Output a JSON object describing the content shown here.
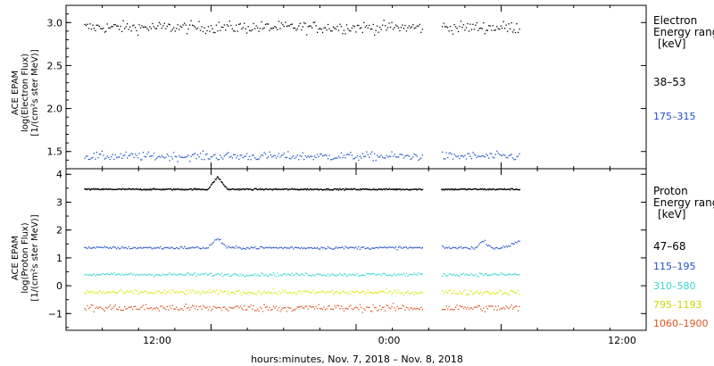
{
  "xlabel": "hours:minutes, Nov.  7, 2018 – Nov.  8, 2018",
  "x_ticks": [
    "12:00",
    "0:00",
    "12:00"
  ],
  "chart_data": [
    {
      "type": "scatter",
      "ylabel_lines": [
        "ACE EPAM",
        "log(Electron Flux)",
        "[1/(cm²s ster MeV)]"
      ],
      "legend_title_lines": [
        "Electron",
        "Energy ranges",
        "[keV]"
      ],
      "ylim": [
        1.3,
        3.2
      ],
      "y_ticks": [
        "1.5",
        "2.0",
        "2.5",
        "3.0"
      ],
      "x_hours_range": [
        0,
        48
      ],
      "data_gap_hours": [
        29.5,
        31
      ],
      "series": [
        {
          "name": "38–53",
          "color": "#000000",
          "level": 2.95,
          "noise": 0.07
        },
        {
          "name": "175–315",
          "color": "#1f4fc8",
          "level": 1.45,
          "noise": 0.05
        }
      ]
    },
    {
      "type": "scatter",
      "ylabel_lines": [
        "ACE EPAM",
        "log(Proton Flux)",
        "[1/(cm²s ster MeV)]"
      ],
      "legend_title_lines": [
        "Proton",
        "Energy ranges",
        "[keV]"
      ],
      "ylim": [
        -1.6,
        4.2
      ],
      "y_ticks": [
        "−1",
        "0",
        "1",
        "2",
        "3",
        "4"
      ],
      "x_hours_range": [
        0,
        48
      ],
      "data_gap_hours": [
        29.5,
        31
      ],
      "series": [
        {
          "name": "47–68",
          "color": "#000000",
          "level": 3.48,
          "noise": 0.03
        },
        {
          "name": "115–195",
          "color": "#1f4fc8",
          "level": 1.38,
          "noise": 0.05
        },
        {
          "name": "310–580",
          "color": "#33d6d0",
          "level": 0.42,
          "noise": 0.06
        },
        {
          "name": "795–1193",
          "color": "#d4e600",
          "level": -0.22,
          "noise": 0.09
        },
        {
          "name": "1060–1900",
          "color": "#e0531c",
          "level": -0.78,
          "noise": 0.13
        }
      ]
    }
  ]
}
